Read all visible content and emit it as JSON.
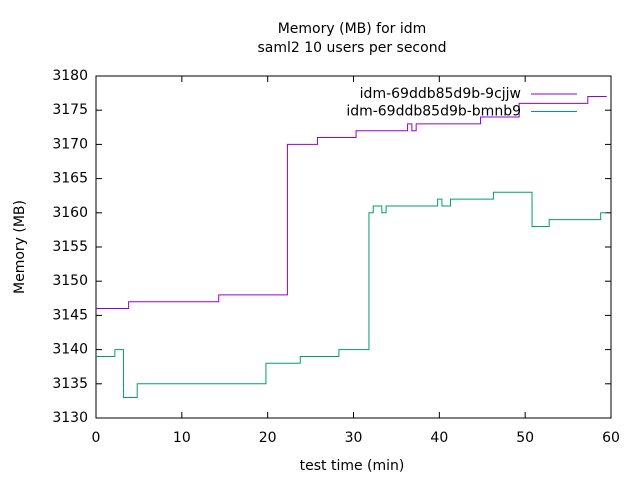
{
  "chart_data": {
    "type": "line",
    "title": "Memory (MB) for idm",
    "subtitle": "saml2 10 users per second",
    "x_label": "test time (min)",
    "y_label": "Memory (MB)",
    "xlim": [
      0,
      60
    ],
    "xticks": [
      0,
      10,
      20,
      30,
      40,
      50,
      60
    ],
    "ylim": [
      3130,
      3180
    ],
    "yticks": [
      3130,
      3135,
      3140,
      3145,
      3150,
      3155,
      3160,
      3165,
      3170,
      3175,
      3180
    ],
    "grid": false,
    "legend": "top-right",
    "series": [
      {
        "name": "idm-69ddb85d9b-9cjjw",
        "color": "#9400d3",
        "x": [
          0,
          3.8,
          3.8,
          14.3,
          14.3,
          22.3,
          22.3,
          25.8,
          25.8,
          30.3,
          30.3,
          36.3,
          36.3,
          36.8,
          36.8,
          37.3,
          37.3,
          44.8,
          44.8,
          49.3,
          49.3,
          57.3,
          57.3,
          59.5
        ],
        "values": [
          3146,
          3146,
          3147,
          3147,
          3148,
          3148,
          3170,
          3170,
          3171,
          3171,
          3172,
          3172,
          3173,
          3173,
          3172,
          3172,
          3173,
          3173,
          3174,
          3174,
          3176,
          3176,
          3177,
          3177
        ]
      },
      {
        "name": "idm-69ddb85d9b-bmnb9",
        "color": "#009e73",
        "x": [
          0,
          2.2,
          2.2,
          3.2,
          3.2,
          4.8,
          4.8,
          19.8,
          19.8,
          23.8,
          23.8,
          28.3,
          28.3,
          31.8,
          31.8,
          32.3,
          32.3,
          33.3,
          33.3,
          33.8,
          33.8,
          39.8,
          39.8,
          40.3,
          40.3,
          41.3,
          41.3,
          46.3,
          46.3,
          50.8,
          50.8,
          52.8,
          52.8,
          58.8,
          58.8,
          59.5
        ],
        "values": [
          3139,
          3139,
          3140,
          3140,
          3133,
          3133,
          3135,
          3135,
          3138,
          3138,
          3139,
          3139,
          3140,
          3140,
          3160,
          3160,
          3161,
          3161,
          3160,
          3160,
          3161,
          3161,
          3162,
          3162,
          3161,
          3161,
          3162,
          3162,
          3163,
          3163,
          3158,
          3158,
          3159,
          3159,
          3160,
          3160
        ]
      }
    ]
  }
}
